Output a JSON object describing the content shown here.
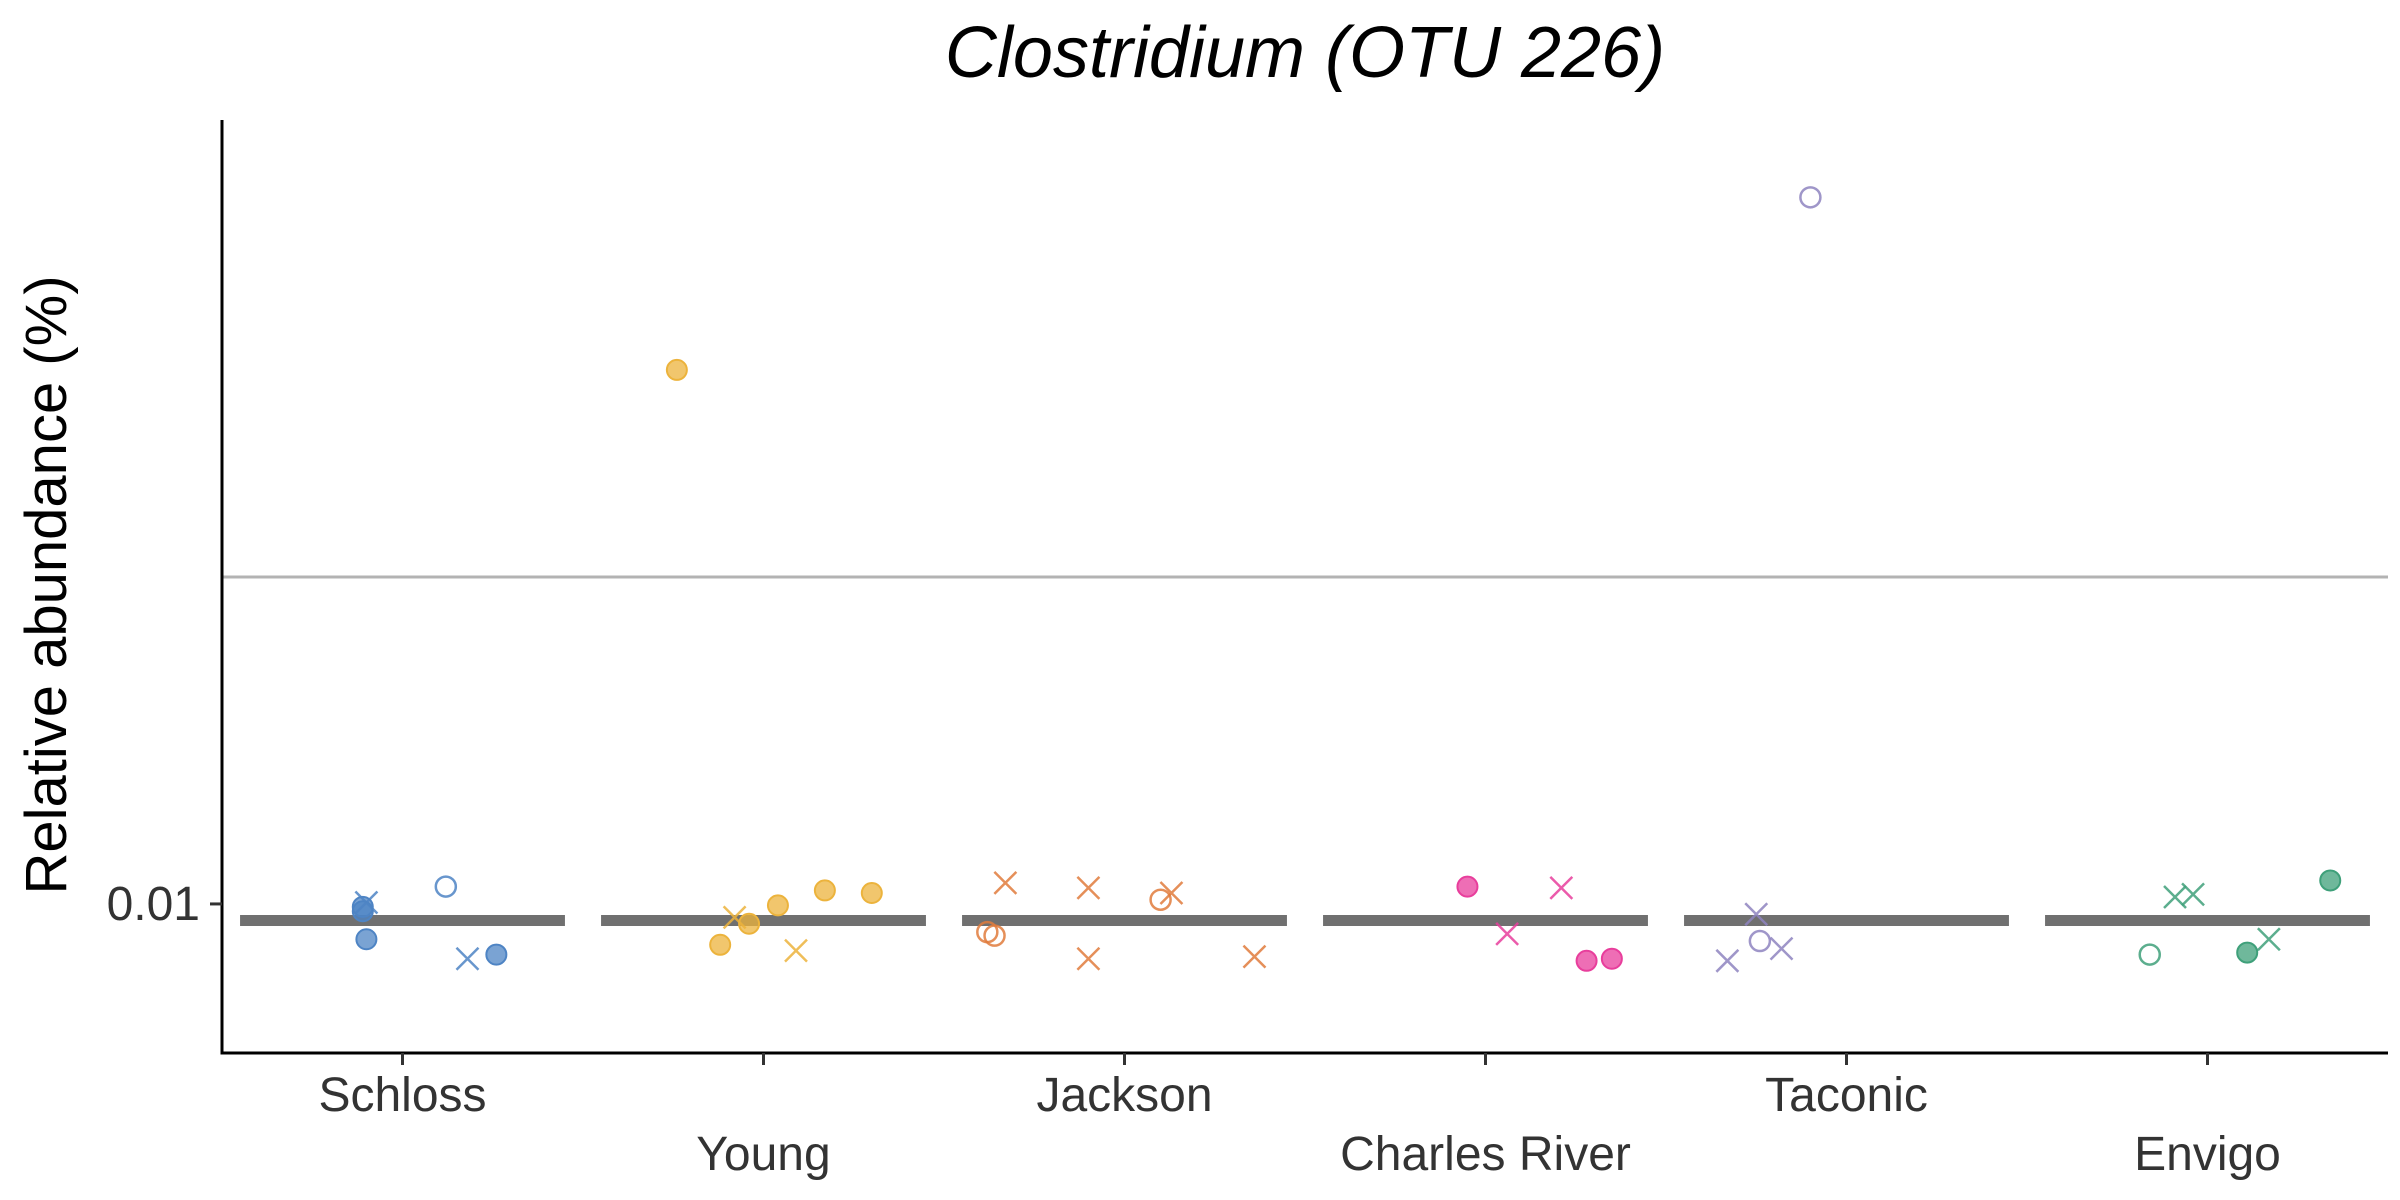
{
  "chart_data": {
    "type": "scatter",
    "title": "Clostridium (OTU 226)",
    "xlabel": "",
    "ylabel": "Relative abundance (%)",
    "y_scale": "log10",
    "ylim": [
      0.0035,
      2.5
    ],
    "y_ticks": [
      {
        "value": 0.01,
        "label": "0.01"
      }
    ],
    "reference_line": {
      "value": 0.1,
      "color": "#b3b3b3"
    },
    "median_line_color": "#707070",
    "grid": false,
    "legend": "none",
    "categories": [
      {
        "name": "Schloss",
        "color": "#4e84c4"
      },
      {
        "name": "Young",
        "color": "#ecb33c"
      },
      {
        "name": "Jackson",
        "color": "#e07b3c"
      },
      {
        "name": "Charles River",
        "color": "#e83e9c"
      },
      {
        "name": "Taconic",
        "color": "#8e84c0"
      },
      {
        "name": "Envigo",
        "color": "#3fa07a"
      }
    ],
    "medians": [
      0.0089,
      0.0089,
      0.0089,
      0.0089,
      0.0089,
      0.0089
    ],
    "points": [
      {
        "category": "Schloss",
        "jitter": -0.11,
        "y": 0.0095,
        "shape": "filled"
      },
      {
        "category": "Schloss",
        "jitter": -0.11,
        "y": 0.0098,
        "shape": "filled"
      },
      {
        "category": "Schloss",
        "jitter": -0.1,
        "y": 0.0101,
        "shape": "cross"
      },
      {
        "category": "Schloss",
        "jitter": 0.12,
        "y": 0.0113,
        "shape": "open"
      },
      {
        "category": "Schloss",
        "jitter": -0.1,
        "y": 0.0078,
        "shape": "filled"
      },
      {
        "category": "Schloss",
        "jitter": 0.26,
        "y": 0.007,
        "shape": "filled"
      },
      {
        "category": "Schloss",
        "jitter": 0.18,
        "y": 0.0068,
        "shape": "cross"
      },
      {
        "category": "Young",
        "jitter": -0.24,
        "y": 0.43,
        "shape": "filled"
      },
      {
        "category": "Young",
        "jitter": 0.04,
        "y": 0.0099,
        "shape": "filled"
      },
      {
        "category": "Young",
        "jitter": 0.17,
        "y": 0.011,
        "shape": "filled"
      },
      {
        "category": "Young",
        "jitter": 0.3,
        "y": 0.0108,
        "shape": "filled"
      },
      {
        "category": "Young",
        "jitter": -0.08,
        "y": 0.0091,
        "shape": "cross"
      },
      {
        "category": "Young",
        "jitter": -0.04,
        "y": 0.0087,
        "shape": "filled"
      },
      {
        "category": "Young",
        "jitter": -0.12,
        "y": 0.0075,
        "shape": "filled"
      },
      {
        "category": "Young",
        "jitter": 0.09,
        "y": 0.0072,
        "shape": "cross"
      },
      {
        "category": "Jackson",
        "jitter": -0.33,
        "y": 0.0116,
        "shape": "cross"
      },
      {
        "category": "Jackson",
        "jitter": -0.1,
        "y": 0.0112,
        "shape": "cross"
      },
      {
        "category": "Jackson",
        "jitter": 0.13,
        "y": 0.0108,
        "shape": "cross"
      },
      {
        "category": "Jackson",
        "jitter": 0.1,
        "y": 0.0103,
        "shape": "open"
      },
      {
        "category": "Jackson",
        "jitter": -0.38,
        "y": 0.0082,
        "shape": "open"
      },
      {
        "category": "Jackson",
        "jitter": -0.36,
        "y": 0.008,
        "shape": "open"
      },
      {
        "category": "Jackson",
        "jitter": -0.1,
        "y": 0.0068,
        "shape": "cross"
      },
      {
        "category": "Jackson",
        "jitter": 0.36,
        "y": 0.0069,
        "shape": "cross"
      },
      {
        "category": "Charles River",
        "jitter": -0.05,
        "y": 0.0113,
        "shape": "filled"
      },
      {
        "category": "Charles River",
        "jitter": 0.21,
        "y": 0.0112,
        "shape": "cross"
      },
      {
        "category": "Charles River",
        "jitter": 0.06,
        "y": 0.0081,
        "shape": "cross"
      },
      {
        "category": "Charles River",
        "jitter": 0.28,
        "y": 0.0067,
        "shape": "filled"
      },
      {
        "category": "Charles River",
        "jitter": 0.35,
        "y": 0.0068,
        "shape": "filled"
      },
      {
        "category": "Taconic",
        "jitter": -0.1,
        "y": 1.45,
        "shape": "open"
      },
      {
        "category": "Taconic",
        "jitter": -0.25,
        "y": 0.0093,
        "shape": "cross"
      },
      {
        "category": "Taconic",
        "jitter": -0.24,
        "y": 0.0077,
        "shape": "open"
      },
      {
        "category": "Taconic",
        "jitter": -0.18,
        "y": 0.0073,
        "shape": "cross"
      },
      {
        "category": "Taconic",
        "jitter": -0.33,
        "y": 0.0067,
        "shape": "cross"
      },
      {
        "category": "Envigo",
        "jitter": -0.09,
        "y": 0.0105,
        "shape": "cross"
      },
      {
        "category": "Envigo",
        "jitter": -0.04,
        "y": 0.0107,
        "shape": "cross"
      },
      {
        "category": "Envigo",
        "jitter": 0.34,
        "y": 0.0118,
        "shape": "filled"
      },
      {
        "category": "Envigo",
        "jitter": 0.17,
        "y": 0.0078,
        "shape": "cross"
      },
      {
        "category": "Envigo",
        "jitter": -0.16,
        "y": 0.007,
        "shape": "open"
      },
      {
        "category": "Envigo",
        "jitter": 0.11,
        "y": 0.0071,
        "shape": "filled"
      }
    ]
  }
}
